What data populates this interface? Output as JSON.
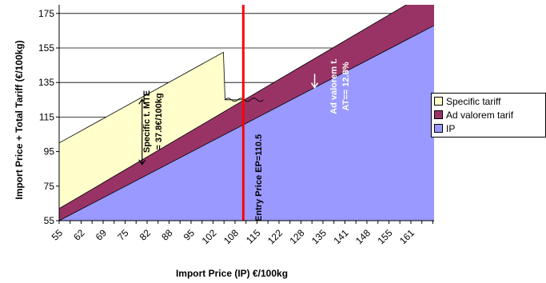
{
  "chart_data": {
    "type": "area",
    "xlabel": "Import Price (IP) €/100kg",
    "ylabel": "Import Price + Total Tariff (€/100kg)",
    "xlim": [
      55,
      168
    ],
    "ylim": [
      55,
      180
    ],
    "x_ticks": [
      55,
      62,
      69,
      75,
      82,
      88,
      95,
      102,
      108,
      115,
      122,
      128,
      135,
      141,
      148,
      155,
      161
    ],
    "y_ticks": [
      55,
      75,
      95,
      115,
      135,
      155,
      175
    ],
    "grid": "horizontal",
    "legend_position": "right",
    "series": [
      {
        "name": "Specific tariff",
        "color": "#ffffcc",
        "x": [
          55,
          104.5,
          105,
          111.7,
          113
        ],
        "y": [
          100,
          152.5,
          125,
          125,
          126
        ]
      },
      {
        "name": "Ad valorem tarif",
        "color": "#993366",
        "x": [
          55,
          168
        ],
        "y": [
          62,
          189.5
        ]
      },
      {
        "name": "IP",
        "color": "#9999ff",
        "x": [
          55,
          168
        ],
        "y": [
          55,
          168
        ]
      }
    ],
    "reference_line": {
      "x": 110.5,
      "color": "#ff0000",
      "label": "Entry Price EP=110.5"
    },
    "annotations": [
      {
        "id": "specific",
        "line1": "Specific t. MTE",
        "line2": "= 37.8€/100kg",
        "x": 80,
        "y_from": 87.5,
        "y_to": 125.3
      },
      {
        "id": "advalorem",
        "line1": "Ad valorem t.",
        "line2": "AT== 12.8%",
        "x": 132,
        "y_from": 140,
        "y_to": 132
      }
    ]
  }
}
